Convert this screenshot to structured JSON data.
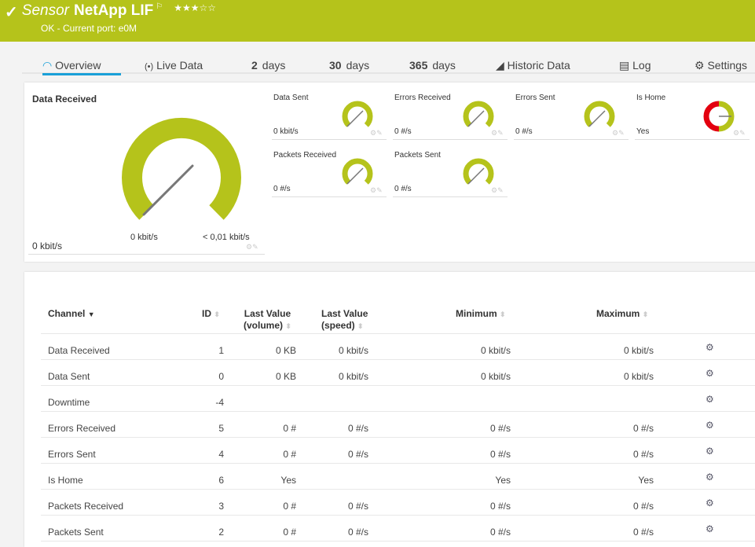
{
  "header": {
    "check_icon": "checkmark",
    "prefix": "Sensor",
    "name": "NetApp LIF",
    "flag_icon": "flag",
    "stars": "★★★☆☆",
    "rating": 3,
    "status": "OK - Current port: e0M",
    "color": "#b5c31b"
  },
  "tabs": [
    {
      "label": "Overview",
      "icon": "gauge-icon",
      "active": true
    },
    {
      "label": "Live Data",
      "icon": "broadcast-icon"
    },
    {
      "num": "2",
      "label": "days"
    },
    {
      "num": "30",
      "label": "days"
    },
    {
      "num": "365",
      "label": "days"
    },
    {
      "label": "Historic Data",
      "icon": "area-chart-icon"
    },
    {
      "label": "Log",
      "icon": "list-icon"
    },
    {
      "label": "Settings",
      "icon": "gear-icon"
    }
  ],
  "main_gauge": {
    "title": "Data Received",
    "value": "0 kbit/s",
    "min": "0 kbit/s",
    "max": "< 0,01 kbit/s",
    "level": 0
  },
  "gauges": [
    {
      "title": "Data Sent",
      "value": "0 kbit/s"
    },
    {
      "title": "Errors Received",
      "value": "0 #/s"
    },
    {
      "title": "Errors Sent",
      "value": "0 #/s"
    },
    {
      "title": "Is Home",
      "value": "Yes"
    },
    {
      "title": "Packets Received",
      "value": "0 #/s"
    },
    {
      "title": "Packets Sent",
      "value": "0 #/s"
    }
  ],
  "table": {
    "headers": {
      "channel": "Channel",
      "id": "ID",
      "vol1": "Last Value",
      "vol2": "(volume)",
      "spd1": "Last Value",
      "spd2": "(speed)",
      "min": "Minimum",
      "max": "Maximum"
    },
    "rows": [
      {
        "channel": "Data Received",
        "id": "1",
        "volume": "0 KB",
        "speed": "0 kbit/s",
        "min": "0 kbit/s",
        "max": "0 kbit/s"
      },
      {
        "channel": "Data Sent",
        "id": "0",
        "volume": "0 KB",
        "speed": "0 kbit/s",
        "min": "0 kbit/s",
        "max": "0 kbit/s"
      },
      {
        "channel": "Downtime",
        "id": "-4",
        "volume": "",
        "speed": "",
        "min": "",
        "max": ""
      },
      {
        "channel": "Errors Received",
        "id": "5",
        "volume": "0 #",
        "speed": "0 #/s",
        "min": "0 #/s",
        "max": "0 #/s"
      },
      {
        "channel": "Errors Sent",
        "id": "4",
        "volume": "0 #",
        "speed": "0 #/s",
        "min": "0 #/s",
        "max": "0 #/s"
      },
      {
        "channel": "Is Home",
        "id": "6",
        "volume": "Yes",
        "speed": "",
        "min": "Yes",
        "max": "Yes"
      },
      {
        "channel": "Packets Received",
        "id": "3",
        "volume": "0 #",
        "speed": "0 #/s",
        "min": "0 #/s",
        "max": "0 #/s"
      },
      {
        "channel": "Packets Sent",
        "id": "2",
        "volume": "0 #",
        "speed": "0 #/s",
        "min": "0 #/s",
        "max": "0 #/s"
      }
    ]
  }
}
